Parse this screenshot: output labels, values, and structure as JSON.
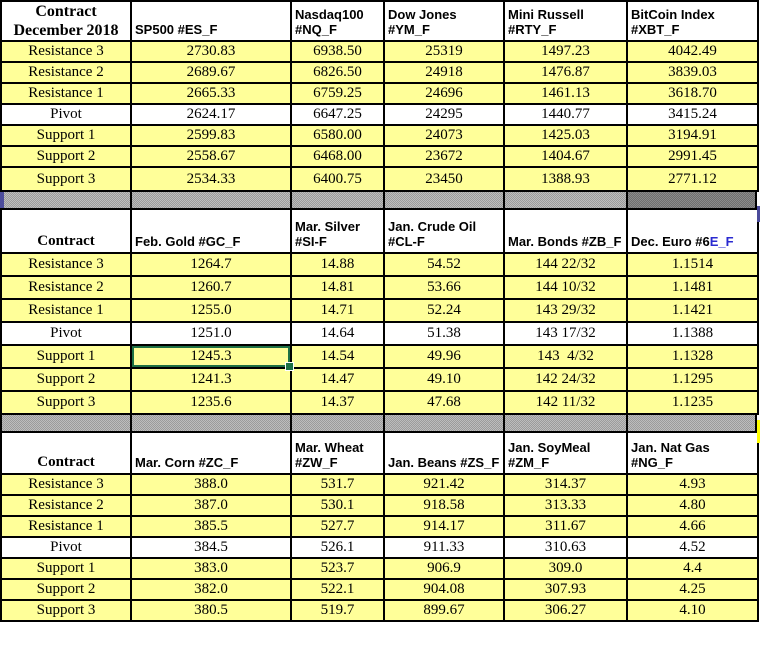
{
  "colors": {
    "cell_yellow": "#ffff99",
    "pivot_white": "#ffffff",
    "grid_black": "#000000",
    "selection_green": "#1e7145",
    "band_checker_a": "#9b9b9b",
    "band_checker_b": "#bdbdbd",
    "band_dark_a": "#6f6f6f",
    "band_dark_b": "#8b8b8b",
    "purple_strip": "#4b4b9b",
    "edge_yellow": "#ffff00",
    "euro_accent_blue": "#2a2ad0"
  },
  "row_labels": [
    "Resistance 3",
    "Resistance 2",
    "Resistance 1",
    "Pivot",
    "Support 1",
    "Support 2",
    "Support 3"
  ],
  "tables": [
    {
      "name": "index-futures",
      "corner": [
        "Contract",
        "December 2018"
      ],
      "columns": [
        {
          "label": "SP500 #ES_F",
          "values": [
            "2730.83",
            "2689.67",
            "2665.33",
            "2624.17",
            "2599.83",
            "2558.67",
            "2534.33"
          ]
        },
        {
          "label": "Nasdaq100\n#NQ_F",
          "values": [
            "6938.50",
            "6826.50",
            "6759.25",
            "6647.25",
            "6580.00",
            "6468.00",
            "6400.75"
          ]
        },
        {
          "label": "Dow Jones\n#YM_F",
          "values": [
            "25319",
            "24918",
            "24696",
            "24295",
            "24073",
            "23672",
            "23450"
          ]
        },
        {
          "label": "Mini Russell\n#RTY_F",
          "values": [
            "1497.23",
            "1476.87",
            "1461.13",
            "1440.77",
            "1425.03",
            "1404.67",
            "1388.93"
          ]
        },
        {
          "label": "BitCoin Index\n#XBT_F",
          "values": [
            "4042.49",
            "3839.03",
            "3618.70",
            "3415.24",
            "3194.91",
            "2991.45",
            "2771.12"
          ]
        }
      ]
    },
    {
      "name": "metals-energy-bonds-fx-futures",
      "corner": [
        "Contract"
      ],
      "columns": [
        {
          "label": "Feb. Gold #GC_F",
          "values": [
            "1264.7",
            "1260.7",
            "1255.0",
            "1251.0",
            "1245.3",
            "1241.3",
            "1235.6"
          ]
        },
        {
          "label": "Mar. Silver\n#SI-F",
          "values": [
            "14.88",
            "14.81",
            "14.71",
            "14.64",
            "14.54",
            "14.47",
            "14.37"
          ]
        },
        {
          "label": "Jan. Crude Oil\n#CL-F",
          "values": [
            "54.52",
            "53.66",
            "52.24",
            "51.38",
            "49.96",
            "49.10",
            "47.68"
          ]
        },
        {
          "label": "Mar. Bonds  #ZB_F",
          "values": [
            "144 22/32",
            "144 10/32",
            "143 29/32",
            "143 17/32",
            "143  4/32",
            "142 24/32",
            "142 11/32"
          ]
        },
        {
          "label": "Dec.  Euro #6",
          "accent_suffix": "E_F",
          "values": [
            "1.1514",
            "1.1481",
            "1.1421",
            "1.1388",
            "1.1328",
            "1.1295",
            "1.1235"
          ]
        }
      ]
    },
    {
      "name": "grain-gas-futures",
      "corner": [
        "Contract"
      ],
      "columns": [
        {
          "label": "Mar.  Corn #ZC_F",
          "values": [
            "388.0",
            "387.0",
            "385.5",
            "384.5",
            "383.0",
            "382.0",
            "380.5"
          ]
        },
        {
          "label": "Mar. Wheat\n#ZW_F",
          "values": [
            "531.7",
            "530.1",
            "527.7",
            "526.1",
            "523.7",
            "522.1",
            "519.7"
          ]
        },
        {
          "label": "Jan. Beans #ZS_F",
          "values": [
            "921.42",
            "918.58",
            "914.17",
            "911.33",
            "906.9",
            "904.08",
            "899.67"
          ]
        },
        {
          "label": "Jan. SoyMeal\n#ZM_F",
          "values": [
            "314.37",
            "313.33",
            "311.67",
            "310.63",
            "309.0",
            "307.93",
            "306.27"
          ]
        },
        {
          "label": "Jan. Nat Gas\n#NG_F",
          "values": [
            "4.93",
            "4.80",
            "4.66",
            "4.52",
            "4.4",
            "4.25",
            "4.10"
          ]
        }
      ]
    }
  ],
  "selection": {
    "table_index": 1,
    "row_index": 4,
    "col_index": 0
  }
}
